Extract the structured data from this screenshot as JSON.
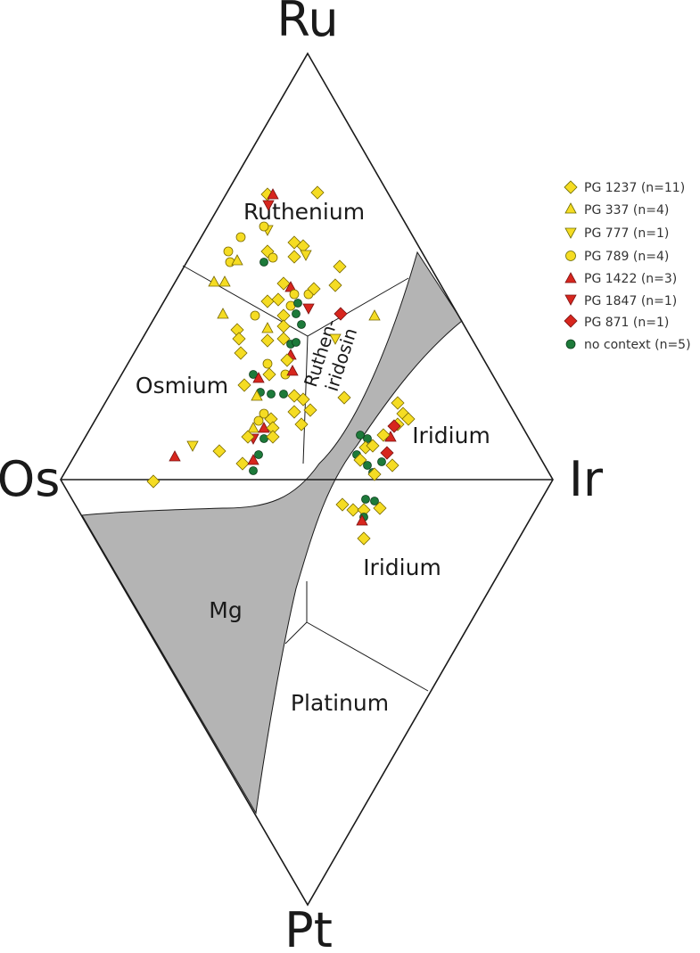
{
  "diagram": {
    "vertices": {
      "top": "Ru",
      "left": "Os",
      "right": "Ir",
      "bottom": "Pt"
    },
    "regions": {
      "ruthenium": "Ruthenium",
      "osmium": "Osmium",
      "rutheniridosmine_line1": "Ruthen-",
      "rutheniridosmine_line2": "iridosin",
      "iridium_upper": "Iridium",
      "iridium_lower": "Iridium",
      "miscibility_gap": "Mg",
      "platinum": "Platinum"
    },
    "colors": {
      "yellow": "#f5dc23",
      "red": "#d7261e",
      "green": "#1d7a3a",
      "gap_fill": "#b4b4b4"
    }
  },
  "legend": [
    {
      "label": "PG 1237 (n=11)",
      "marker": "diamond",
      "color": "#f5dc23"
    },
    {
      "label": "PG 337 (n=4)",
      "marker": "triangle-up",
      "color": "#f5dc23"
    },
    {
      "label": "PG 777 (n=1)",
      "marker": "triangle-down",
      "color": "#f5dc23"
    },
    {
      "label": "PG 789 (n=4)",
      "marker": "circle",
      "color": "#f5dc23"
    },
    {
      "label": "PG 1422 (n=3)",
      "marker": "triangle-up",
      "color": "#d7261e"
    },
    {
      "label": "PG 1847 (n=1)",
      "marker": "triangle-down",
      "color": "#d7261e"
    },
    {
      "label": "PG 871 (n=1)",
      "marker": "diamond",
      "color": "#d7261e"
    },
    {
      "label": "no context (n=5)",
      "marker": "circle",
      "color": "#1d7a3a"
    }
  ]
}
